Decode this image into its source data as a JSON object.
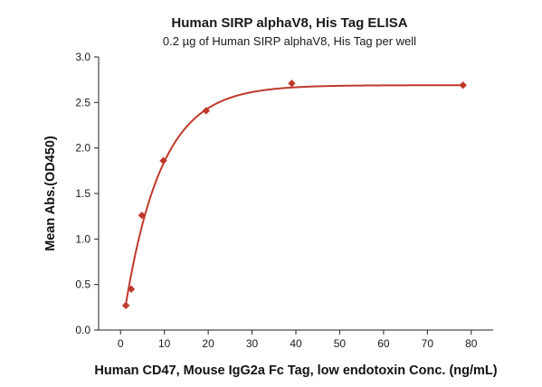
{
  "chart_data": {
    "type": "scatter",
    "title": "Human SIRP alphaV8, His Tag ELISA",
    "subtitle": "0.2 µg of Human SIRP alphaV8, His Tag per well",
    "xlabel": "Human CD47, Mouse IgG2a Fc Tag, low endotoxin Conc. (ng/mL)",
    "ylabel": "Mean Abs.(OD450)",
    "xlim": [
      -5,
      85
    ],
    "ylim": [
      0.0,
      3.0
    ],
    "x_ticks": [
      "0",
      "10",
      "20",
      "30",
      "40",
      "50",
      "60",
      "70",
      "80"
    ],
    "y_ticks": [
      "0.0",
      "0.5",
      "1.0",
      "1.5",
      "2.0",
      "2.5",
      "3.0"
    ],
    "grid": false,
    "series": [
      {
        "x": [
          1.22,
          2.44,
          4.88,
          9.77,
          19.53,
          39.06,
          78.13
        ],
        "y": [
          0.27,
          0.45,
          1.26,
          1.86,
          2.41,
          2.71,
          2.69
        ],
        "marker": "diamond",
        "fit": "saturation-curve"
      }
    ],
    "colors": {
      "series": "#c0392b",
      "curve": "#c0392b",
      "axis": "#222222"
    }
  }
}
